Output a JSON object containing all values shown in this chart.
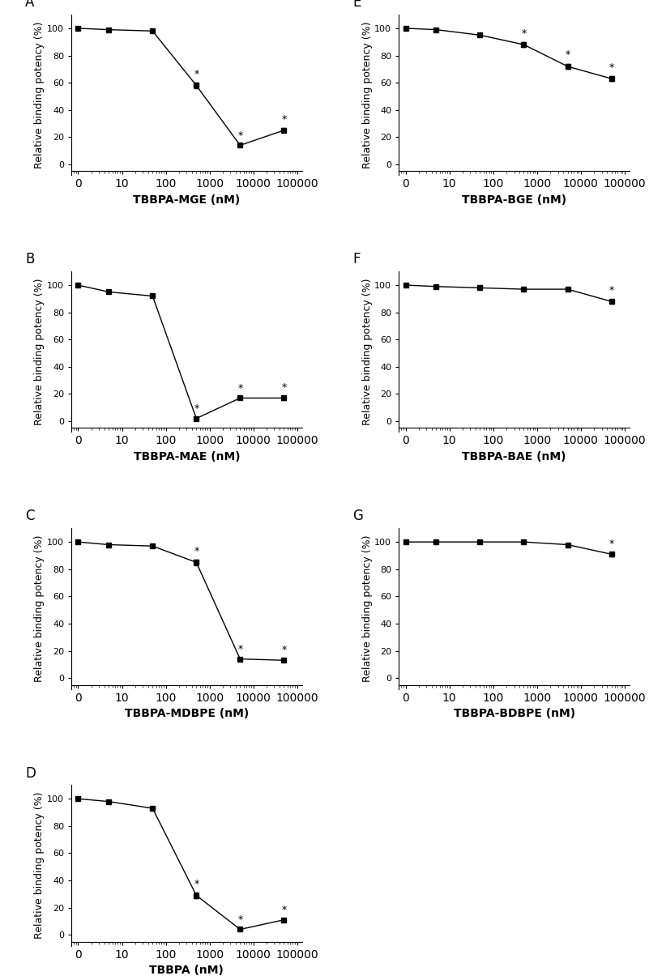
{
  "panels": [
    {
      "label": "A",
      "xlabel": "TBBPA-MGE (nM)",
      "x": [
        1,
        5,
        50,
        500,
        5000,
        50000
      ],
      "y": [
        100,
        99,
        98,
        58,
        14,
        25
      ],
      "yerr": [
        0.5,
        0.5,
        0.5,
        2,
        1,
        1.5
      ],
      "star_idx": [
        3,
        4,
        5
      ]
    },
    {
      "label": "B",
      "xlabel": "TBBPA-MAE (nM)",
      "x": [
        1,
        5,
        50,
        500,
        5000,
        50000
      ],
      "y": [
        100,
        95,
        92,
        2,
        17,
        17
      ],
      "yerr": [
        0.5,
        1,
        1,
        1,
        1,
        1.5
      ],
      "star_idx": [
        3,
        4,
        5
      ]
    },
    {
      "label": "C",
      "xlabel": "TBBPA-MDBPE (nM)",
      "x": [
        1,
        5,
        50,
        500,
        5000,
        50000
      ],
      "y": [
        100,
        98,
        97,
        85,
        14,
        13
      ],
      "yerr": [
        0.5,
        0.5,
        0.5,
        2,
        1,
        1
      ],
      "star_idx": [
        3,
        4,
        5
      ]
    },
    {
      "label": "D",
      "xlabel": "TBBPA (nM)",
      "x": [
        1,
        5,
        50,
        500,
        5000,
        50000
      ],
      "y": [
        100,
        98,
        93,
        29,
        4,
        11
      ],
      "yerr": [
        0.5,
        1,
        1,
        2,
        1,
        1
      ],
      "star_idx": [
        3,
        4,
        5
      ]
    },
    {
      "label": "E",
      "xlabel": "TBBPA-BGE (nM)",
      "x": [
        1,
        5,
        50,
        500,
        5000,
        50000
      ],
      "y": [
        100,
        99,
        95,
        88,
        72,
        63
      ],
      "yerr": [
        0.5,
        0.5,
        1,
        2,
        2,
        2
      ],
      "star_idx": [
        3,
        4,
        5
      ]
    },
    {
      "label": "F",
      "xlabel": "TBBPA-BAE (nM)",
      "x": [
        1,
        5,
        50,
        500,
        5000,
        50000
      ],
      "y": [
        100,
        99,
        98,
        97,
        97,
        88
      ],
      "yerr": [
        0.5,
        0.5,
        0.5,
        0.5,
        0.5,
        1.5
      ],
      "star_idx": [
        5
      ]
    },
    {
      "label": "G",
      "xlabel": "TBBPA-BDBPE (nM)",
      "x": [
        1,
        5,
        50,
        500,
        5000,
        50000
      ],
      "y": [
        100,
        100,
        100,
        100,
        98,
        91
      ],
      "yerr": [
        0.5,
        0.5,
        0.5,
        0.5,
        0.5,
        1.5
      ],
      "star_idx": [
        5
      ]
    }
  ],
  "ylabel": "Relative binding potency (%)",
  "ylim": [
    -8,
    110
  ],
  "yticks": [
    0,
    20,
    40,
    60,
    80,
    100
  ],
  "line_color": "black",
  "marker": "s",
  "markersize": 4,
  "linewidth": 1.0,
  "capsize": 2,
  "elinewidth": 0.8,
  "background_color": "white",
  "ylabel_fontsize": 9,
  "tick_fontsize": 8,
  "xlabel_fontsize": 10,
  "panel_label_fontsize": 12
}
